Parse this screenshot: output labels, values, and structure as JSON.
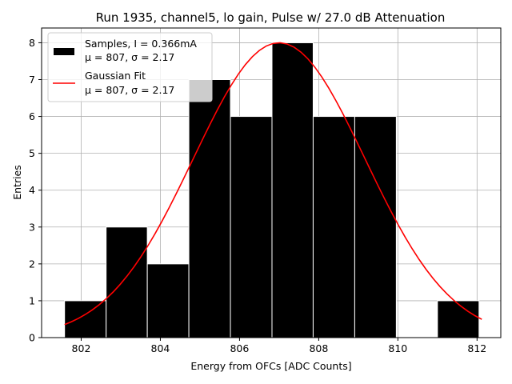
{
  "chart_data": {
    "type": "bar",
    "title": "Run 1935, channel5, lo gain, Pulse w/ 27.0 dB Attenuation",
    "xlabel": "Energy from OFCs [ADC Counts]",
    "ylabel": "Entries",
    "xlim": [
      801.0,
      812.6
    ],
    "ylim": [
      0,
      8.4
    ],
    "xticks": [
      802,
      804,
      806,
      808,
      810,
      812
    ],
    "yticks": [
      0,
      1,
      2,
      3,
      4,
      5,
      6,
      7,
      8
    ],
    "grid": true,
    "legend_position": "top-left",
    "bin_edges": [
      801.58,
      802.63,
      803.67,
      804.72,
      805.77,
      806.82,
      807.86,
      808.91,
      809.96,
      811.0,
      812.05
    ],
    "series": [
      {
        "name": "Samples, I = 0.366mA",
        "name_line2": "μ = 807, σ = 2.17",
        "kind": "histogram",
        "color": "#000000",
        "edge_color": "#ffffff",
        "values": [
          1,
          3,
          2,
          7,
          6,
          8,
          6,
          6,
          0,
          1
        ]
      },
      {
        "name": "Gaussian Fit",
        "name_line2": "μ = 807, σ = 2.17",
        "kind": "curve",
        "color": "#ff0000",
        "mu": 807.0,
        "sigma": 2.17,
        "amplitude": 8.0,
        "x_range": [
          801.58,
          812.12
        ]
      }
    ]
  }
}
